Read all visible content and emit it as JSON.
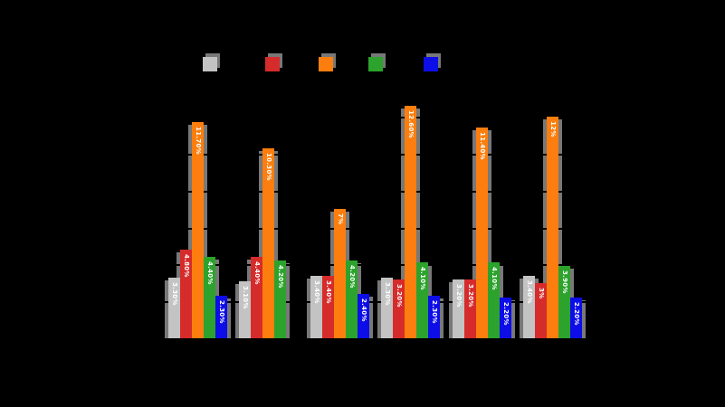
{
  "canvas": {
    "background": "#000000"
  },
  "legend": {
    "items": [
      {
        "label": "",
        "color": "#c3c3c3"
      },
      {
        "label": "",
        "color": "#d62b2b"
      },
      {
        "label": "",
        "color": "#fd7e0e"
      },
      {
        "label": "",
        "color": "#2ca32c"
      },
      {
        "label": "",
        "color": "#0d0de8"
      }
    ]
  },
  "chart_data": {
    "type": "bar",
    "title": "",
    "xlabel": "",
    "ylabel": "",
    "categories": [
      "",
      "",
      "",
      "",
      "",
      ""
    ],
    "series": [
      {
        "name": "",
        "color": "#c3c3c3",
        "values": [
          3.3,
          3.1,
          3.4,
          3.3,
          3.2,
          3.4
        ],
        "labels": [
          "3.30%",
          "3.10%",
          "3.40%",
          "3.30%",
          "3.20%",
          "3.40%"
        ]
      },
      {
        "name": "",
        "color": "#d62b2b",
        "values": [
          4.8,
          4.4,
          3.4,
          3.2,
          3.2,
          3.0
        ],
        "labels": [
          "4.80%",
          "4.40%",
          "3.40%",
          "3.20%",
          "3.20%",
          "3%"
        ]
      },
      {
        "name": "",
        "color": "#fd7e0e",
        "values": [
          11.7,
          10.3,
          7.0,
          12.6,
          11.4,
          12.0
        ],
        "labels": [
          "11.70%",
          "10.30%",
          "7%",
          "12.60%",
          "11.40%",
          "12%"
        ]
      },
      {
        "name": "",
        "color": "#2ca32c",
        "values": [
          4.4,
          4.2,
          4.2,
          4.1,
          4.1,
          3.9
        ],
        "labels": [
          "4.40%",
          "4.20%",
          "4.20%",
          "4.10%",
          "4.10%",
          "3.90%"
        ]
      },
      {
        "name": "",
        "color": "#0d0de8",
        "values": [
          2.3,
          0,
          2.4,
          2.3,
          2.2,
          2.2
        ],
        "labels": [
          "2.30%",
          "",
          "2.40%",
          "2.30%",
          "2.20%",
          "2.20%"
        ]
      }
    ],
    "ylim": [
      0,
      13.4
    ],
    "gridlines_pct": [
      2,
      4,
      6,
      8,
      10,
      12
    ],
    "grid_color": "#000000",
    "bar_label_color": "#ffffff",
    "shadow_color": "#787878",
    "legend_position": "top"
  }
}
